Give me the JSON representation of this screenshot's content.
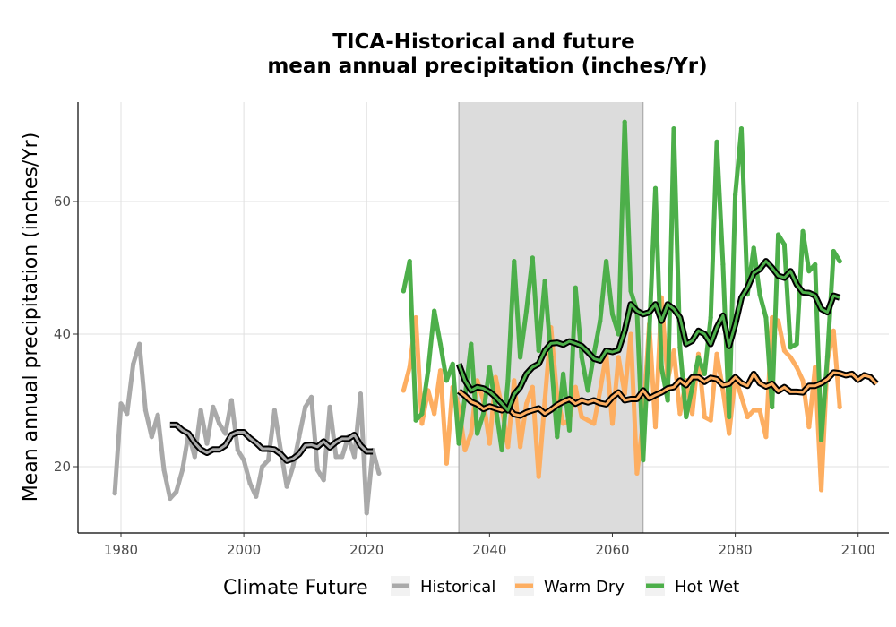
{
  "chart_data": {
    "type": "line",
    "title_lines": [
      "TICA-Historical and future",
      "mean annual precipitation (inches/Yr)"
    ],
    "xlabel": "",
    "ylabel": "Mean annual precipitation (inches/Yr)",
    "xlim": [
      1973,
      2105
    ],
    "ylim": [
      10,
      75
    ],
    "x_ticks": [
      1980,
      2000,
      2020,
      2040,
      2060,
      2080,
      2100
    ],
    "y_ticks": [
      20,
      40,
      60
    ],
    "grid": true,
    "shaded_period": [
      2035,
      2065
    ],
    "legend": {
      "title": "Climate Future",
      "position": "bottom",
      "entries": [
        "Historical",
        "Warm Dry",
        "Hot Wet"
      ]
    },
    "series": [
      {
        "name": "Historical",
        "color": "#a9a9a9",
        "x_start": 1979,
        "values": [
          16.0,
          29.5,
          28.0,
          35.5,
          38.5,
          28.5,
          24.5,
          27.8,
          19.5,
          15.2,
          16.2,
          19.5,
          25.0,
          21.5,
          28.5,
          23.5,
          29.0,
          26.5,
          25.0,
          30.0,
          22.5,
          21.0,
          17.5,
          15.5,
          20.0,
          21.0,
          28.5,
          22.5,
          17.0,
          20.0,
          24.5,
          29.0,
          30.5,
          19.5,
          18.0,
          29.0,
          21.5,
          21.5,
          24.5,
          21.5,
          31.0,
          13.0,
          22.5,
          19.0
        ],
        "smooth_x_start": 1988,
        "smooth_values": [
          26.3,
          26.3,
          25.5,
          25.0,
          23.6,
          22.6,
          22.1,
          22.6,
          22.6,
          23.2,
          24.8,
          25.2,
          25.2,
          24.3,
          23.6,
          22.7,
          22.7,
          22.6,
          21.9,
          20.9,
          21.2,
          21.9,
          23.2,
          23.3,
          23.0,
          23.8,
          22.9,
          23.7,
          24.2,
          24.2,
          24.8,
          23.2,
          22.3,
          22.3
        ]
      },
      {
        "name": "Warm Dry",
        "color": "#fdae61",
        "x_start": 2026,
        "values": [
          31.5,
          35.0,
          42.5,
          26.5,
          31.5,
          28.0,
          34.5,
          20.5,
          32.0,
          29.0,
          22.5,
          25.0,
          33.0,
          30.0,
          23.5,
          33.5,
          29.0,
          23.0,
          33.0,
          23.0,
          29.5,
          32.0,
          18.5,
          30.0,
          41.0,
          30.5,
          26.5,
          27.0,
          32.0,
          27.5,
          27.0,
          26.5,
          31.5,
          37.0,
          26.5,
          36.5,
          31.0,
          40.0,
          19.0,
          27.0,
          41.5,
          26.0,
          45.5,
          33.0,
          37.5,
          28.0,
          33.0,
          28.0,
          37.0,
          27.5,
          27.0,
          37.0,
          31.5,
          25.0,
          33.5,
          30.5,
          27.5,
          28.5,
          28.5,
          24.5,
          42.5,
          42.0,
          37.5,
          36.5,
          35.0,
          33.0,
          26.0,
          35.0,
          16.5,
          36.0,
          40.5,
          29.0
        ],
        "smooth_x_start": 2035,
        "smooth_values": [
          31.4,
          30.7,
          29.8,
          29.4,
          28.7,
          29.1,
          28.8,
          28.5,
          28.9,
          27.9,
          27.7,
          28.2,
          28.5,
          28.8,
          28.0,
          28.6,
          29.3,
          29.8,
          30.2,
          29.5,
          30.0,
          29.7,
          30.0,
          29.6,
          29.4,
          30.5,
          31.2,
          30.0,
          30.2,
          30.2,
          31.5,
          30.3,
          30.8,
          31.2,
          31.8,
          32.0,
          33.0,
          32.3,
          33.5,
          33.5,
          32.8,
          33.4,
          33.2,
          32.3,
          32.5,
          33.5,
          32.6,
          32.2,
          34.0,
          32.6,
          32.1,
          32.5,
          31.4,
          32.0,
          31.3,
          31.3,
          31.2,
          32.2,
          32.2,
          32.6,
          33.2,
          34.2,
          34.1,
          33.8,
          34.0,
          33.1,
          33.8,
          33.5,
          32.5
        ]
      },
      {
        "name": "Hot Wet",
        "color": "#4daf4a",
        "x_start": 2026,
        "values": [
          46.5,
          51.0,
          27.0,
          28.0,
          34.5,
          43.5,
          38.5,
          33.0,
          35.5,
          23.5,
          30.5,
          38.5,
          25.0,
          28.0,
          35.0,
          29.0,
          22.5,
          33.0,
          51.0,
          36.5,
          43.5,
          51.5,
          37.5,
          48.0,
          36.5,
          24.5,
          34.0,
          25.5,
          47.0,
          36.5,
          31.5,
          37.0,
          42.0,
          51.0,
          43.0,
          40.0,
          72.0,
          46.5,
          43.5,
          21.0,
          40.0,
          62.0,
          35.0,
          30.0,
          71.0,
          38.0,
          27.5,
          32.0,
          36.5,
          34.0,
          42.5,
          69.0,
          50.5,
          27.5,
          61.0,
          71.0,
          46.0,
          53.0,
          46.0,
          42.5,
          29.0,
          55.0,
          53.5,
          38.0,
          38.5,
          55.5,
          49.5,
          50.5,
          24.0,
          36.5,
          52.5,
          51.0
        ],
        "smooth_x_start": 2035,
        "smooth_values": [
          35.5,
          33.0,
          31.5,
          32.0,
          31.8,
          31.3,
          30.5,
          29.5,
          28.5,
          30.9,
          32.0,
          34.0,
          35.0,
          35.5,
          37.5,
          38.6,
          38.7,
          38.4,
          38.9,
          38.6,
          38.2,
          37.3,
          36.3,
          36.0,
          37.5,
          37.3,
          37.6,
          40.5,
          44.5,
          43.5,
          43.0,
          43.3,
          44.5,
          42.0,
          44.5,
          43.8,
          42.5,
          38.5,
          39.0,
          40.5,
          40.0,
          38.5,
          41.0,
          42.8,
          38.2,
          41.5,
          45.5,
          47.0,
          49.2,
          49.8,
          51.0,
          50.0,
          48.8,
          48.5,
          49.5,
          47.5,
          46.3,
          46.2,
          45.8,
          43.8,
          43.3,
          45.8,
          45.5
        ]
      }
    ]
  }
}
